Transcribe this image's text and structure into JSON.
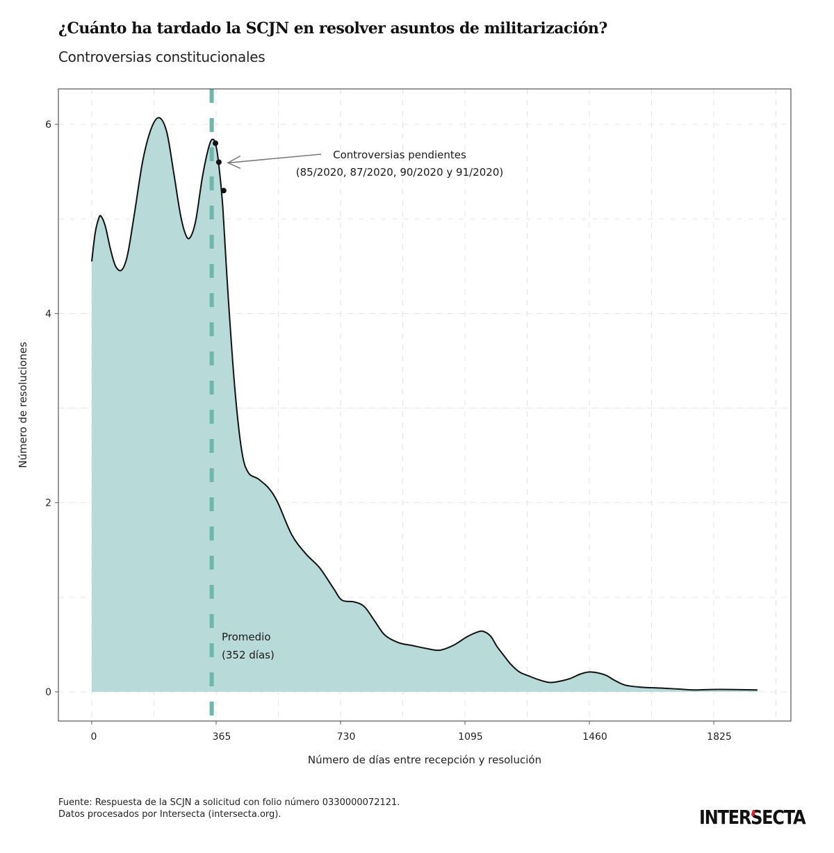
{
  "header": {
    "title": "¿Cuánto ha tardado la SCJN en resolver asuntos de militarización?",
    "subtitle": "Controversias constitucionales"
  },
  "footer": {
    "source_line1": "Fuente: Respuesta de la SCJN a solicitud con folio número 0330000072121.",
    "source_line2": "Datos procesados por Intersecta (intersecta.org).",
    "logo_part1": "INTER",
    "logo_part2": "S",
    "logo_part3": "ECTA"
  },
  "colors": {
    "fill": "#b8dad8",
    "line": "#111111",
    "mean_line": "#6fb7ad",
    "grid": "#e3e3e3",
    "frame": "#555555",
    "arrow": "#777777",
    "logo_accent": "#e0242b"
  },
  "chart_data": {
    "type": "area",
    "title": "¿Cuánto ha tardado la SCJN en resolver asuntos de militarización?",
    "subtitle": "Controversias constitucionales",
    "xlabel": "Número de días entre recepción y resolución",
    "ylabel": "Número de resoluciones",
    "xlim": [
      -100,
      2050
    ],
    "ylim": [
      -0.3,
      6.38
    ],
    "xticks": [
      0,
      365,
      730,
      1095,
      1460,
      1825
    ],
    "xtick_labels": [
      "0",
      "365",
      "730",
      "1095",
      "1460",
      "1825"
    ],
    "yticks": [
      0,
      2,
      4,
      6
    ],
    "ytick_labels": [
      "0",
      "2",
      "4",
      "6"
    ],
    "grid": true,
    "x": [
      0,
      10,
      20,
      27,
      40,
      55,
      70,
      88,
      105,
      125,
      150,
      175,
      198,
      220,
      240,
      260,
      275,
      288,
      305,
      325,
      345,
      357,
      366,
      375,
      385,
      400,
      420,
      440,
      459,
      489,
      520,
      546,
      587,
      628,
      669,
      710,
      734,
      771,
      800,
      830,
      860,
      900,
      940,
      980,
      1020,
      1060,
      1100,
      1130,
      1148,
      1170,
      1189,
      1210,
      1230,
      1255,
      1281,
      1310,
      1342,
      1370,
      1403,
      1435,
      1464,
      1505,
      1535,
      1566,
      1610,
      1668,
      1720,
      1770,
      1820,
      1870,
      1920,
      1953
    ],
    "values": [
      4.55,
      4.85,
      5.0,
      5.03,
      4.92,
      4.68,
      4.5,
      4.46,
      4.62,
      5.05,
      5.62,
      5.96,
      6.07,
      5.92,
      5.5,
      5.05,
      4.84,
      4.8,
      4.98,
      5.45,
      5.78,
      5.84,
      5.75,
      5.5,
      5.1,
      4.2,
      3.2,
      2.55,
      2.32,
      2.25,
      2.15,
      2.0,
      1.66,
      1.46,
      1.31,
      1.09,
      0.97,
      0.95,
      0.9,
      0.75,
      0.6,
      0.52,
      0.49,
      0.46,
      0.44,
      0.49,
      0.58,
      0.63,
      0.64,
      0.59,
      0.48,
      0.38,
      0.29,
      0.21,
      0.17,
      0.13,
      0.1,
      0.11,
      0.14,
      0.19,
      0.21,
      0.18,
      0.12,
      0.07,
      0.05,
      0.04,
      0.03,
      0.02,
      0.025,
      0.025,
      0.022,
      0.02
    ],
    "mean_line": {
      "x": 352,
      "label_line1": "Promedio",
      "label_line2": "(352 días)"
    },
    "highlight_points": [
      {
        "x": 363,
        "y": 5.8
      },
      {
        "x": 373,
        "y": 5.6
      },
      {
        "x": 387,
        "y": 5.3
      }
    ],
    "annotation": {
      "line1": "Controversias pendientes",
      "line2": "(85/2020, 87/2020, 90/2020 y 91/2020)"
    }
  }
}
